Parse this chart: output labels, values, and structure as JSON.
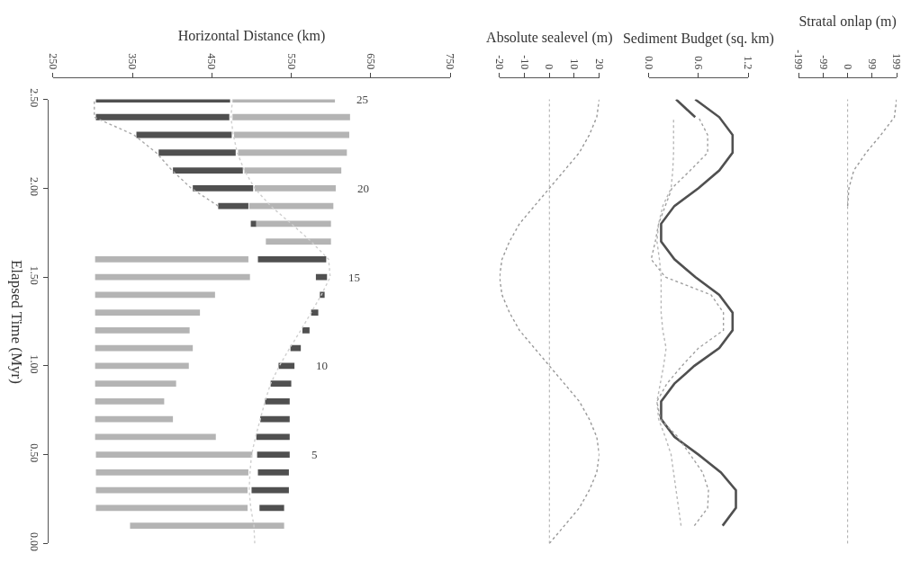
{
  "chart_data": [
    {
      "type": "bar",
      "orientation": "horizontal",
      "xlabel": "Horizontal Distance (km)",
      "ylabel": "Elapsed Time (Myr)",
      "line_style": "dotted",
      "x": [
        0.1,
        0.2,
        0.3,
        0.4,
        0.5,
        0.6,
        0.7,
        0.8,
        0.9,
        1.0,
        1.1,
        1.2,
        1.3,
        1.4,
        1.5,
        1.6,
        1.7,
        1.8,
        1.9,
        2.0,
        2.1,
        2.2,
        2.3,
        2.4,
        2.5
      ],
      "series": [
        {
          "color": "#505050",
          "base": [
            null,
            510,
            500,
            508,
            507,
            506,
            511,
            517,
            524,
            534,
            549,
            564,
            575,
            586,
            581,
            508,
            null,
            499,
            458,
            426,
            401,
            383,
            355,
            304,
            304
          ],
          "values": [
            null,
            31,
            47,
            39,
            41,
            42,
            37,
            31,
            26,
            20,
            13,
            9,
            9,
            6,
            14,
            86,
            null,
            7,
            38,
            76,
            88,
            97,
            120,
            168,
            169
          ]
        },
        {
          "color": "#b4b4b4",
          "base": [
            347,
            304,
            304,
            304,
            304,
            303,
            303,
            303,
            303,
            303,
            303,
            303,
            303,
            303,
            303,
            303,
            518,
            506,
            497,
            504,
            491,
            483,
            478,
            476,
            476
          ],
          "values": [
            194,
            191,
            191,
            192,
            197,
            152,
            98,
            87,
            102,
            118,
            123,
            119,
            132,
            151,
            195,
            193,
            82,
            94,
            106,
            102,
            122,
            137,
            145,
            148,
            129
          ]
        },
        {
          "type": "line",
          "color": "#cfcfcf",
          "x": [
            0.0,
            0.1,
            0.2,
            0.3,
            0.4,
            0.5,
            0.6,
            0.7,
            0.8,
            0.9,
            1.0,
            1.1,
            1.2,
            1.3,
            1.4,
            1.5,
            1.6,
            1.7,
            1.8,
            1.9,
            2.0,
            2.1,
            2.2,
            2.3,
            2.4,
            2.5
          ],
          "values": [
            504,
            503,
            499,
            497,
            498,
            500,
            505,
            511,
            517,
            524,
            535,
            548,
            562,
            575,
            588,
            599,
            597,
            575,
            550,
            524,
            504,
            491,
            482,
            477,
            474,
            476
          ]
        },
        {
          "type": "line",
          "color": "#a8a8a8",
          "x": [
            1.9,
            2.0,
            2.1,
            2.2,
            2.3,
            2.4,
            2.5
          ],
          "values": [
            458,
            424,
            400,
            380,
            352,
            302,
            302
          ]
        }
      ],
      "xlim": [
        250,
        750
      ],
      "xticks": [
        250,
        350,
        450,
        550,
        650,
        750
      ],
      "ylim": [
        0,
        2.5
      ],
      "yticks": [
        {
          "value": 0,
          "label": "0.00"
        },
        {
          "value": 0.5,
          "label": "0.50"
        },
        {
          "value": 1,
          "label": "1.00"
        },
        {
          "value": 1.5,
          "label": "1.50"
        },
        {
          "value": 2,
          "label": "2.00"
        },
        {
          "value": 2.5,
          "label": "2.50"
        }
      ],
      "annotations": [
        {
          "text": "5",
          "x": 548,
          "y": 0.5
        },
        {
          "text": "10",
          "x": 554,
          "y": 1.0
        },
        {
          "text": "15",
          "x": 595,
          "y": 1.5
        },
        {
          "text": "20",
          "x": 606,
          "y": 2.0
        },
        {
          "text": "25",
          "x": 605,
          "y": 2.5
        }
      ]
    },
    {
      "type": "line",
      "orientation": "horizontal",
      "xlabel": "Absolute sealevel (m)",
      "line_style": "dotted",
      "tick_labels": "x",
      "x": [
        0.0,
        0.1,
        0.2,
        0.3,
        0.4,
        0.5,
        0.6,
        0.7,
        0.8,
        0.9,
        1.0,
        1.1,
        1.2,
        1.3,
        1.4,
        1.5,
        1.6,
        1.7,
        1.8,
        1.9,
        2.0,
        2.1,
        2.2,
        2.3,
        2.4,
        2.5
      ],
      "series": [
        {
          "color": "#999999",
          "values": [
            0,
            6,
            12,
            16,
            19,
            20,
            19,
            16,
            12,
            6,
            0,
            -6,
            -12,
            -16,
            -19,
            -20,
            -19,
            -16,
            -12,
            -6,
            0,
            6,
            12,
            16,
            19,
            20
          ]
        }
      ],
      "xlim": [
        -20,
        20
      ],
      "xticks": [
        -20,
        -10,
        0,
        10,
        20
      ],
      "ylim": [
        0,
        2.5
      ],
      "ref_lines": [
        {
          "axis": "x",
          "value": 0,
          "color": "#aaaaaa",
          "line_style": "dotted"
        }
      ]
    },
    {
      "type": "line",
      "orientation": "horizontal",
      "xlabel": "Sediment Budget (sq. km)",
      "tick_labels": "x",
      "x": [
        0.1,
        0.2,
        0.3,
        0.4,
        0.5,
        0.6,
        0.7,
        0.8,
        0.9,
        1.0,
        1.1,
        1.2,
        1.3,
        1.4,
        1.5,
        1.6,
        1.7,
        1.8,
        1.9,
        2.0,
        2.1,
        2.2,
        2.3,
        2.4,
        2.5
      ],
      "series": [
        {
          "color": "#505050",
          "line_style": "solid",
          "values": [
            0.89,
            1.05,
            1.05,
            0.87,
            0.6,
            0.31,
            0.15,
            0.15,
            0.31,
            0.55,
            0.85,
            1.01,
            1.01,
            0.85,
            0.56,
            0.31,
            0.15,
            0.15,
            0.31,
            0.6,
            0.85,
            1.01,
            1.01,
            0.85,
            0.56
          ]
        },
        {
          "color": "#505050",
          "line_style": "solid",
          "x": [
            2.4,
            2.5
          ],
          "values": [
            0.56,
            0.33
          ]
        },
        {
          "color": "#a0a0a0",
          "line_style": "dotted",
          "x": [
            0.1,
            0.2,
            0.3,
            0.4,
            0.5,
            0.6,
            0.7,
            0.8,
            0.9,
            1.0,
            1.1,
            1.2,
            1.3,
            1.4,
            1.5,
            1.6,
            1.7,
            1.8,
            1.9,
            2.0,
            2.1,
            2.2,
            2.3,
            2.4
          ],
          "values": [
            0.55,
            0.71,
            0.72,
            0.65,
            0.5,
            0.35,
            0.14,
            0.1,
            0.22,
            0.4,
            0.6,
            0.9,
            0.9,
            0.75,
            0.2,
            0.03,
            0.08,
            0.12,
            0.2,
            0.28,
            0.5,
            0.71,
            0.71,
            0.6
          ]
        },
        {
          "color": "#b8b8b8",
          "line_style": "dotted",
          "x": [
            0.1,
            0.2,
            0.3,
            0.4,
            0.5,
            0.6,
            0.7,
            0.8,
            0.9,
            1.0,
            1.1,
            1.2,
            1.3,
            1.4,
            1.5,
            1.6,
            1.7,
            1.8,
            1.9,
            2.0,
            2.1,
            2.2,
            2.3,
            2.4
          ],
          "values": [
            0.39,
            0.36,
            0.33,
            0.3,
            0.27,
            0.2,
            0.12,
            0.1,
            0.14,
            0.18,
            0.21,
            0.17,
            0.15,
            0.15,
            0.15,
            0.13,
            0.1,
            0.12,
            0.17,
            0.27,
            0.29,
            0.3,
            0.3,
            0.3
          ]
        }
      ],
      "xlim": [
        0,
        1.2
      ],
      "xticks": [
        {
          "value": 0,
          "label": "0.0"
        },
        0.6,
        1.2
      ],
      "ylim": [
        0,
        2.5
      ]
    },
    {
      "type": "line",
      "orientation": "horizontal",
      "xlabel": "Stratal onlap (m)",
      "line_style": "dotted",
      "tick_labels": "x",
      "x": [
        1.9,
        2.0,
        2.1,
        2.2,
        2.3,
        2.4,
        2.5
      ],
      "series": [
        {
          "color": "#999999",
          "values": [
            0,
            5,
            25,
            75,
            135,
            190,
            199
          ]
        }
      ],
      "xlim": [
        -199,
        199
      ],
      "xticks": [
        -199,
        -99,
        0,
        99,
        199
      ],
      "ylim": [
        0,
        2.5
      ],
      "ref_lines": [
        {
          "axis": "x",
          "value": 0,
          "color": "#aaaaaa",
          "line_style": "dotted"
        }
      ]
    }
  ]
}
